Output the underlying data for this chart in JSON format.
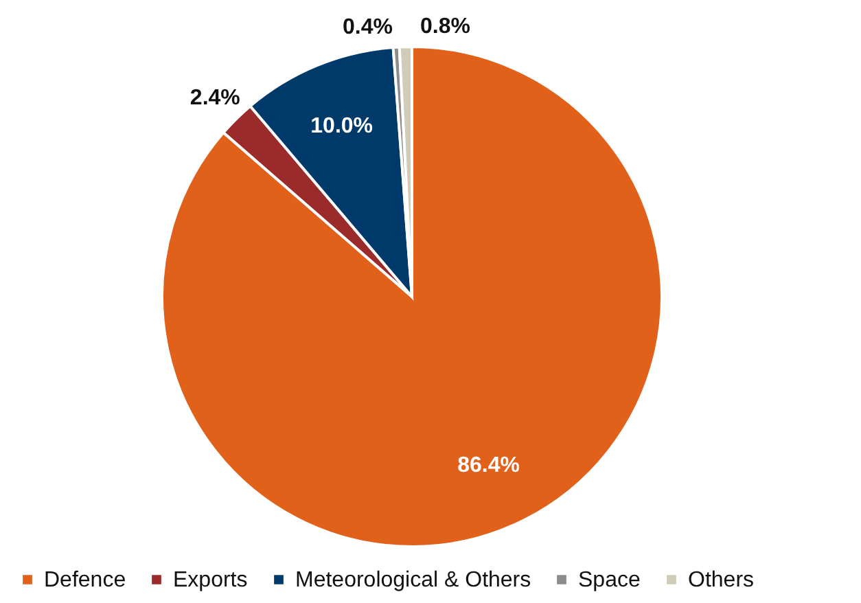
{
  "chart_data": {
    "type": "pie",
    "categories": [
      "Defence",
      "Exports",
      "Meteorological & Others",
      "Space",
      "Others"
    ],
    "values": [
      86.4,
      2.4,
      10.0,
      0.4,
      0.8
    ],
    "value_labels": [
      "86.4%",
      "2.4%",
      "10.0%",
      "0.4%",
      "0.8%"
    ],
    "colors": [
      "#e2611a",
      "#9b2a2a",
      "#003a6b",
      "#8c8c8c",
      "#d1ccb8"
    ],
    "legend": "bottom"
  }
}
